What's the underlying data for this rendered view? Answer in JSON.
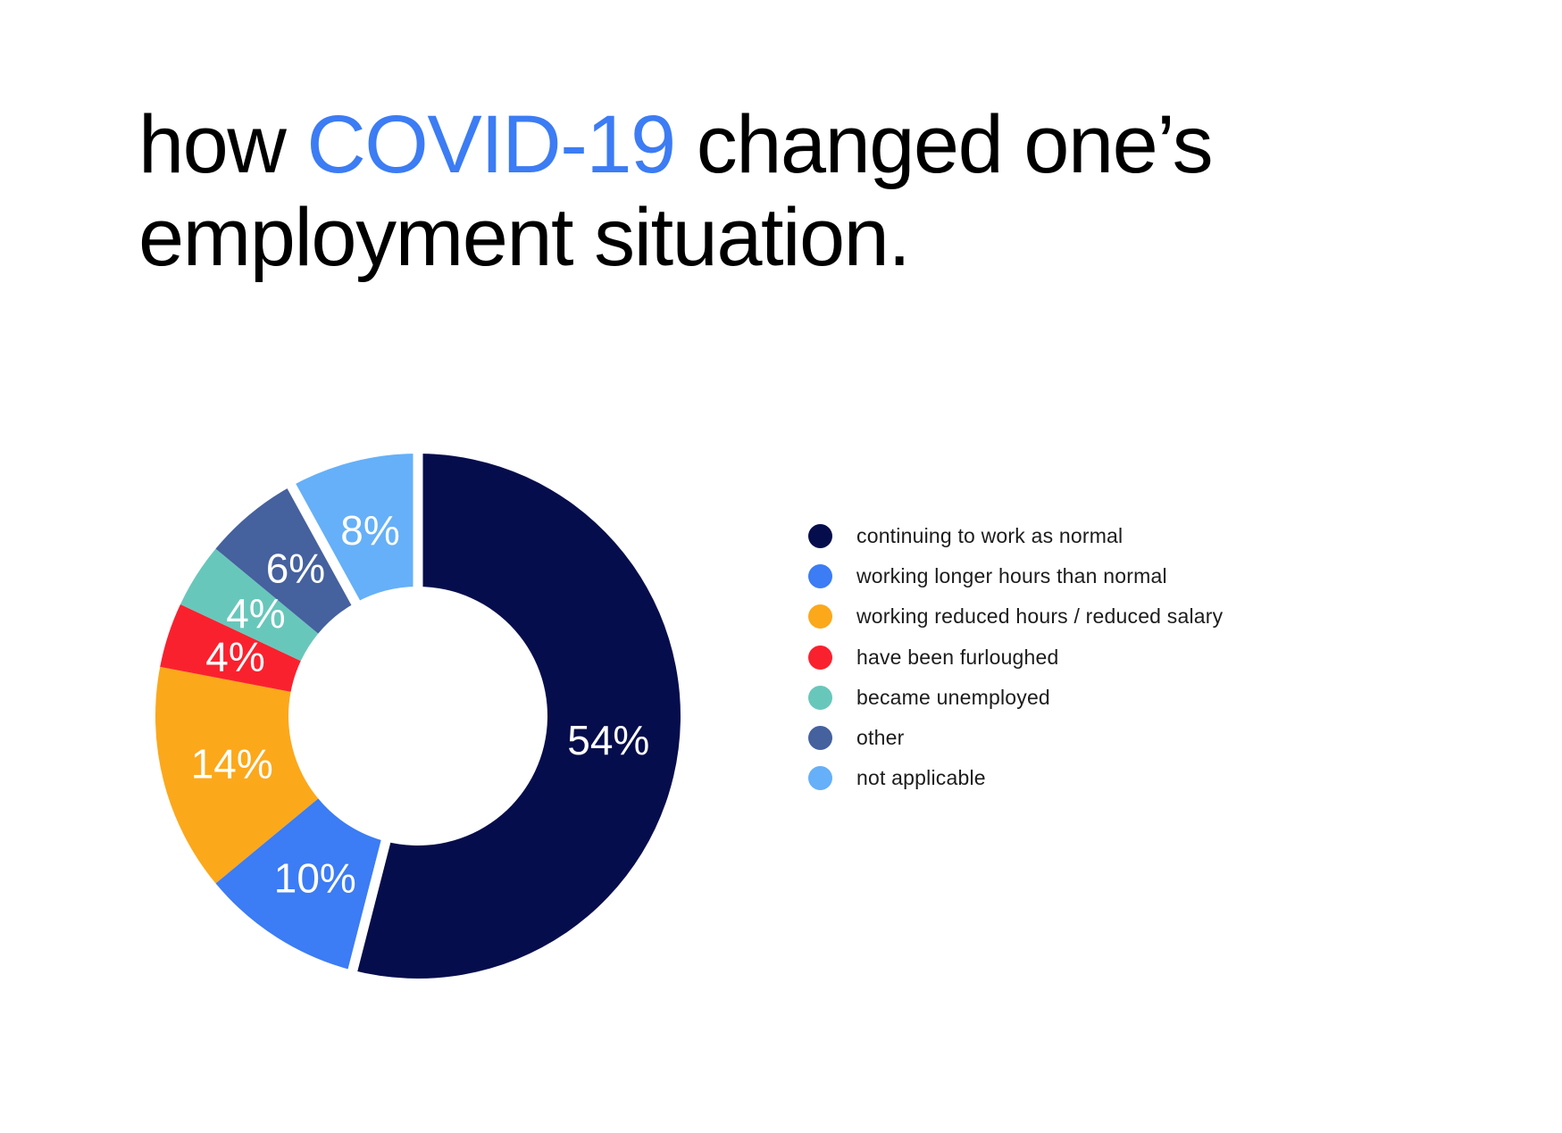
{
  "title": {
    "pre": "how ",
    "highlight": "COVID-19",
    "post_line1": " changed one’s",
    "line2": "employment situation."
  },
  "colors": {
    "background": "#FFFFFF",
    "title_text": "#000000",
    "title_accent": "#3C7CF4",
    "legend_text": "#1C1C1C",
    "slice_label_text": "#FFFFFF"
  },
  "chart_data": {
    "type": "pie",
    "subtype": "donut",
    "title": "how COVID-19 changed one’s employment situation.",
    "categories": [
      "continuing to work as normal",
      "working longer hours than normal",
      "working reduced hours / reduced salary",
      "have been furloughed",
      "became unemployed",
      "other",
      "not applicable"
    ],
    "values": [
      54,
      10,
      14,
      4,
      4,
      6,
      8
    ],
    "unit": "%",
    "slice_labels": [
      "54%",
      "10%",
      "14%",
      "4%",
      "4%",
      "6%",
      "8%"
    ],
    "colors": [
      "#060D4C",
      "#3C7CF4",
      "#FCA81B",
      "#FA212E",
      "#68C7BB",
      "#45619E",
      "#65B0F8"
    ],
    "start_angle_deg": 0,
    "direction": "clockwise",
    "gap_before": [
      true,
      true,
      false,
      false,
      false,
      false,
      true
    ],
    "legend_position": "right",
    "grid": false
  },
  "legend": {
    "items": [
      {
        "label": "continuing to work as normal",
        "color": "#060D4C"
      },
      {
        "label": "working longer hours than normal",
        "color": "#3C7CF4"
      },
      {
        "label": "working reduced hours / reduced salary",
        "color": "#FCA81B"
      },
      {
        "label": "have been furloughed",
        "color": "#FA212E"
      },
      {
        "label": "became unemployed",
        "color": "#68C7BB"
      },
      {
        "label": "other",
        "color": "#45619E"
      },
      {
        "label": "not applicable",
        "color": "#65B0F8"
      }
    ]
  }
}
